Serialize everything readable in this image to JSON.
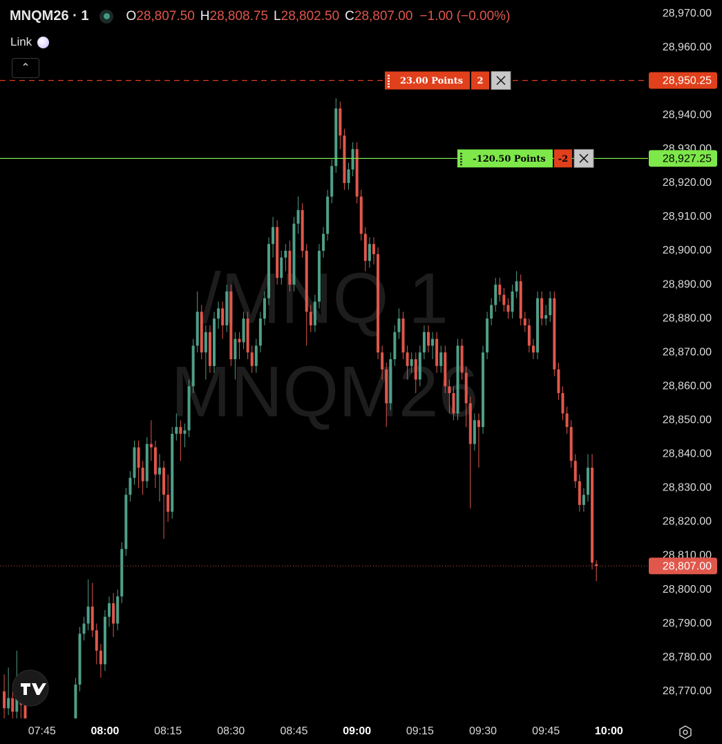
{
  "chart_data": {
    "type": "candlestick",
    "title": "MNQM26 · 1",
    "legend": {
      "open_label": "O",
      "open": "28,807.50",
      "high_label": "H",
      "high": "28,808.75",
      "low_label": "L",
      "low": "28,802.50",
      "close_label": "C",
      "close": "28,807.00",
      "change": "−1.00 (−0.00%)",
      "color": "#e0574c"
    },
    "link": "Link",
    "watermark": [
      "/MNQ 1",
      "MNQM26"
    ],
    "x": [
      "07:36",
      "07:37",
      "07:38",
      "07:39",
      "07:40",
      "07:41",
      "07:53",
      "07:54",
      "07:55",
      "07:56",
      "07:57",
      "07:58",
      "07:59",
      "08:00",
      "08:01",
      "08:02",
      "08:03",
      "08:04",
      "08:05",
      "08:06",
      "08:07",
      "08:08",
      "08:09",
      "08:10",
      "08:11",
      "08:12",
      "08:13",
      "08:14",
      "08:15",
      "08:16",
      "08:17",
      "08:18",
      "08:19",
      "08:20",
      "08:21",
      "08:22",
      "08:23",
      "08:24",
      "08:25",
      "08:26",
      "08:27",
      "08:28",
      "08:29",
      "08:30",
      "08:31",
      "08:32",
      "08:33",
      "08:34",
      "08:35",
      "08:36",
      "08:37",
      "08:38",
      "08:39",
      "08:40",
      "08:41",
      "08:42",
      "08:43",
      "08:44",
      "08:45",
      "08:46",
      "08:47",
      "08:48",
      "08:49",
      "08:50",
      "08:51",
      "08:52",
      "08:53",
      "08:54",
      "08:55",
      "08:56",
      "08:57",
      "08:58",
      "08:59",
      "09:00",
      "09:01",
      "09:02",
      "09:03",
      "09:04",
      "09:05",
      "09:06",
      "09:07",
      "09:08",
      "09:09",
      "09:10",
      "09:11",
      "09:12",
      "09:13",
      "09:14",
      "09:15",
      "09:16",
      "09:17",
      "09:18",
      "09:19",
      "09:20",
      "09:21",
      "09:22",
      "09:23",
      "09:24",
      "09:25",
      "09:26",
      "09:27",
      "09:28",
      "09:29",
      "09:30",
      "09:31",
      "09:32",
      "09:33",
      "09:34",
      "09:35",
      "09:36",
      "09:37",
      "09:38",
      "09:39",
      "09:40",
      "09:41",
      "09:42",
      "09:43",
      "09:44",
      "09:45",
      "09:46",
      "09:47",
      "09:48",
      "09:49",
      "09:50",
      "09:51",
      "09:52",
      "09:53",
      "09:54",
      "09:55",
      "09:56",
      "09:57"
    ],
    "candles": [
      [
        28770,
        28775,
        28760,
        28765
      ],
      [
        28765,
        28777,
        28763,
        28768
      ],
      [
        28768,
        28770,
        28758,
        28764
      ],
      [
        28764,
        28782,
        28762,
        28770
      ],
      [
        28770,
        28772,
        28762,
        28766
      ],
      [
        28766,
        28768,
        28755,
        28762
      ],
      [
        28760,
        28774,
        28752,
        28772
      ],
      [
        28772,
        28789,
        28770,
        28787
      ],
      [
        28787,
        28792,
        28785,
        28790
      ],
      [
        28790,
        28803,
        28788,
        28795
      ],
      [
        28795,
        28802,
        28786,
        28788
      ],
      [
        28788,
        28790,
        28778,
        28782
      ],
      [
        28782,
        28784,
        28774,
        28778
      ],
      [
        28778,
        28794,
        28776,
        28792
      ],
      [
        28792,
        28798,
        28789,
        28796
      ],
      [
        28796,
        28799,
        28786,
        28790
      ],
      [
        28790,
        28800,
        28788,
        28798
      ],
      [
        28798,
        28814,
        28796,
        28812
      ],
      [
        28812,
        28830,
        28810,
        28828
      ],
      [
        28828,
        28835,
        28826,
        28833
      ],
      [
        28833,
        28844,
        28831,
        28842
      ],
      [
        28842,
        28844,
        28830,
        28836
      ],
      [
        28836,
        28838,
        28828,
        28832
      ],
      [
        28832,
        28845,
        28830,
        28843
      ],
      [
        28843,
        28850,
        28838,
        28842
      ],
      [
        28842,
        28844,
        28830,
        28834
      ],
      [
        28834,
        28840,
        28826,
        28836
      ],
      [
        28836,
        28838,
        28815,
        28828
      ],
      [
        28828,
        28834,
        28820,
        28823
      ],
      [
        28823,
        28848,
        28821,
        28846
      ],
      [
        28846,
        28852,
        28844,
        28848
      ],
      [
        28848,
        28850,
        28838,
        28846
      ],
      [
        28846,
        28849,
        28842,
        28847
      ],
      [
        28847,
        28862,
        28845,
        28860
      ],
      [
        28860,
        28874,
        28858,
        28872
      ],
      [
        28872,
        28888,
        28870,
        28882
      ],
      [
        28882,
        28884,
        28868,
        28870
      ],
      [
        28870,
        28878,
        28862,
        28876
      ],
      [
        28876,
        28878,
        28864,
        28866
      ],
      [
        28866,
        28882,
        28864,
        28880
      ],
      [
        28880,
        28885,
        28877,
        28883
      ],
      [
        28883,
        28885,
        28874,
        28878
      ],
      [
        28878,
        28890,
        28876,
        28888
      ],
      [
        28888,
        28890,
        28866,
        28868
      ],
      [
        28868,
        28876,
        28862,
        28874
      ],
      [
        28874,
        28876,
        28868,
        28873
      ],
      [
        28873,
        28882,
        28871,
        28880
      ],
      [
        28880,
        28882,
        28868,
        28870
      ],
      [
        28870,
        28872,
        28864,
        28866
      ],
      [
        28866,
        28874,
        28864,
        28872
      ],
      [
        28872,
        28882,
        28870,
        28880
      ],
      [
        28880,
        28888,
        28878,
        28886
      ],
      [
        28886,
        28904,
        28884,
        28902
      ],
      [
        28902,
        28910,
        28898,
        28907
      ],
      [
        28907,
        28909,
        28890,
        28892
      ],
      [
        28892,
        28900,
        28890,
        28898
      ],
      [
        28898,
        28902,
        28894,
        28900
      ],
      [
        28900,
        28903,
        28888,
        28890
      ],
      [
        28890,
        28910,
        28888,
        28908
      ],
      [
        28908,
        28916,
        28905,
        28912
      ],
      [
        28912,
        28914,
        28898,
        28900
      ],
      [
        28900,
        28902,
        28872,
        28882
      ],
      [
        28882,
        28884,
        28876,
        28878
      ],
      [
        28878,
        28887,
        28876,
        28885
      ],
      [
        28885,
        28902,
        28883,
        28900
      ],
      [
        28900,
        28907,
        28898,
        28905
      ],
      [
        28905,
        28918,
        28903,
        28916
      ],
      [
        28916,
        28927,
        28914,
        28925
      ],
      [
        28925,
        28945,
        28923,
        28942
      ],
      [
        28942,
        28944,
        28930,
        28934
      ],
      [
        28934,
        28936,
        28918,
        28920
      ],
      [
        28920,
        28926,
        28918,
        28924
      ],
      [
        28924,
        28932,
        28922,
        28930
      ],
      [
        28930,
        28932,
        28914,
        28916
      ],
      [
        28916,
        28918,
        28903,
        28905
      ],
      [
        28905,
        28907,
        28894,
        28897
      ],
      [
        28897,
        28904,
        28895,
        28902
      ],
      [
        28902,
        28904,
        28896,
        28899
      ],
      [
        28899,
        28901,
        28868,
        28870
      ],
      [
        28870,
        28872,
        28862,
        28865
      ],
      [
        28865,
        28867,
        28848,
        28855
      ],
      [
        28855,
        28870,
        28853,
        28868
      ],
      [
        28868,
        28878,
        28866,
        28876
      ],
      [
        28876,
        28883,
        28874,
        28880
      ],
      [
        28880,
        28882,
        28868,
        28870
      ],
      [
        28870,
        28872,
        28862,
        28866
      ],
      [
        28866,
        28870,
        28864,
        28868
      ],
      [
        28868,
        28870,
        28858,
        28862
      ],
      [
        28862,
        28872,
        28860,
        28870
      ],
      [
        28870,
        28878,
        28868,
        28876
      ],
      [
        28876,
        28878,
        28870,
        28872
      ],
      [
        28872,
        28876,
        28868,
        28874
      ],
      [
        28874,
        28876,
        28864,
        28866
      ],
      [
        28866,
        28872,
        28864,
        28870
      ],
      [
        28870,
        28872,
        28858,
        28860
      ],
      [
        28860,
        28862,
        28852,
        28858
      ],
      [
        28858,
        28860,
        28850,
        28852
      ],
      [
        28852,
        28874,
        28850,
        28872
      ],
      [
        28872,
        28874,
        28862,
        28864
      ],
      [
        28864,
        28866,
        28848,
        28855
      ],
      [
        28855,
        28857,
        28824,
        28843
      ],
      [
        28843,
        28852,
        28841,
        28850
      ],
      [
        28850,
        28852,
        28836,
        28848
      ],
      [
        28848,
        28872,
        28846,
        28870
      ],
      [
        28870,
        28882,
        28868,
        28880
      ],
      [
        28880,
        28886,
        28878,
        28884
      ],
      [
        28884,
        28892,
        28882,
        28890
      ],
      [
        28890,
        28892,
        28885,
        28887
      ],
      [
        28887,
        28889,
        28882,
        28884
      ],
      [
        28884,
        28886,
        28880,
        28882
      ],
      [
        28882,
        28890,
        28880,
        28888
      ],
      [
        28888,
        28894,
        28886,
        28891
      ],
      [
        28891,
        28893,
        28878,
        28880
      ],
      [
        28880,
        28882,
        28876,
        28878
      ],
      [
        28878,
        28880,
        28870,
        28872
      ],
      [
        28872,
        28874,
        28868,
        28870
      ],
      [
        28870,
        28888,
        28868,
        28886
      ],
      [
        28886,
        28888,
        28878,
        28880
      ],
      [
        28880,
        28884,
        28878,
        28881
      ],
      [
        28881,
        28888,
        28879,
        28886
      ],
      [
        28886,
        28888,
        28863,
        28865
      ],
      [
        28865,
        28867,
        28856,
        28858
      ],
      [
        28858,
        28860,
        28850,
        28852
      ],
      [
        28852,
        28854,
        28846,
        28848
      ],
      [
        28848,
        28850,
        28836,
        28838
      ],
      [
        28838,
        28840,
        28830,
        28832
      ],
      [
        28832,
        28834,
        28823,
        28825
      ],
      [
        28825,
        28830,
        28823,
        28828
      ],
      [
        28828,
        28840,
        28826,
        28836
      ],
      [
        28836,
        28840,
        28806,
        28808
      ],
      [
        28807.5,
        28808.75,
        28802.5,
        28807
      ]
    ],
    "up_color": "#4f9f88",
    "down_color": "#e0574c",
    "ylim": [
      28762,
      28974
    ],
    "yticks": [
      {
        "value": 28970,
        "label": "28,970.00"
      },
      {
        "value": 28960,
        "label": "28,960.00"
      },
      {
        "value": 28950,
        "label": "28,950.00"
      },
      {
        "value": 28940,
        "label": "28,940.00"
      },
      {
        "value": 28930,
        "label": "28,930.00"
      },
      {
        "value": 28920,
        "label": "28,920.00"
      },
      {
        "value": 28910,
        "label": "28,910.00"
      },
      {
        "value": 28900,
        "label": "28,900.00"
      },
      {
        "value": 28890,
        "label": "28,890.00"
      },
      {
        "value": 28880,
        "label": "28,880.00"
      },
      {
        "value": 28870,
        "label": "28,870.00"
      },
      {
        "value": 28860,
        "label": "28,860.00"
      },
      {
        "value": 28850,
        "label": "28,850.00"
      },
      {
        "value": 28840,
        "label": "28,840.00"
      },
      {
        "value": 28830,
        "label": "28,830.00"
      },
      {
        "value": 28820,
        "label": "28,820.00"
      },
      {
        "value": 28810,
        "label": "28,810.00"
      },
      {
        "value": 28800,
        "label": "28,800.00"
      },
      {
        "value": 28790,
        "label": "28,790.00"
      },
      {
        "value": 28780,
        "label": "28,780.00"
      },
      {
        "value": 28770,
        "label": "28,770.00"
      }
    ],
    "xlim": [
      "07:35",
      "10:08"
    ],
    "xticks": [
      "07:45",
      "08:00",
      "08:15",
      "08:30",
      "08:45",
      "09:00",
      "09:15",
      "09:30",
      "09:45",
      "10:00"
    ],
    "price_lines": [
      {
        "value": 28950.25,
        "label": "28,950.25",
        "text": "23.00 Points",
        "qty": "2",
        "color": "#e0401c",
        "style": "dashed"
      },
      {
        "value": 28927.25,
        "label": "28,927.25",
        "text": "-120.50 Points",
        "qty": "-2",
        "color": "#7ee84a",
        "style": "solid"
      }
    ],
    "last_price": {
      "value": 28807,
      "label": "28,807.00",
      "color": "#e0574c"
    }
  }
}
